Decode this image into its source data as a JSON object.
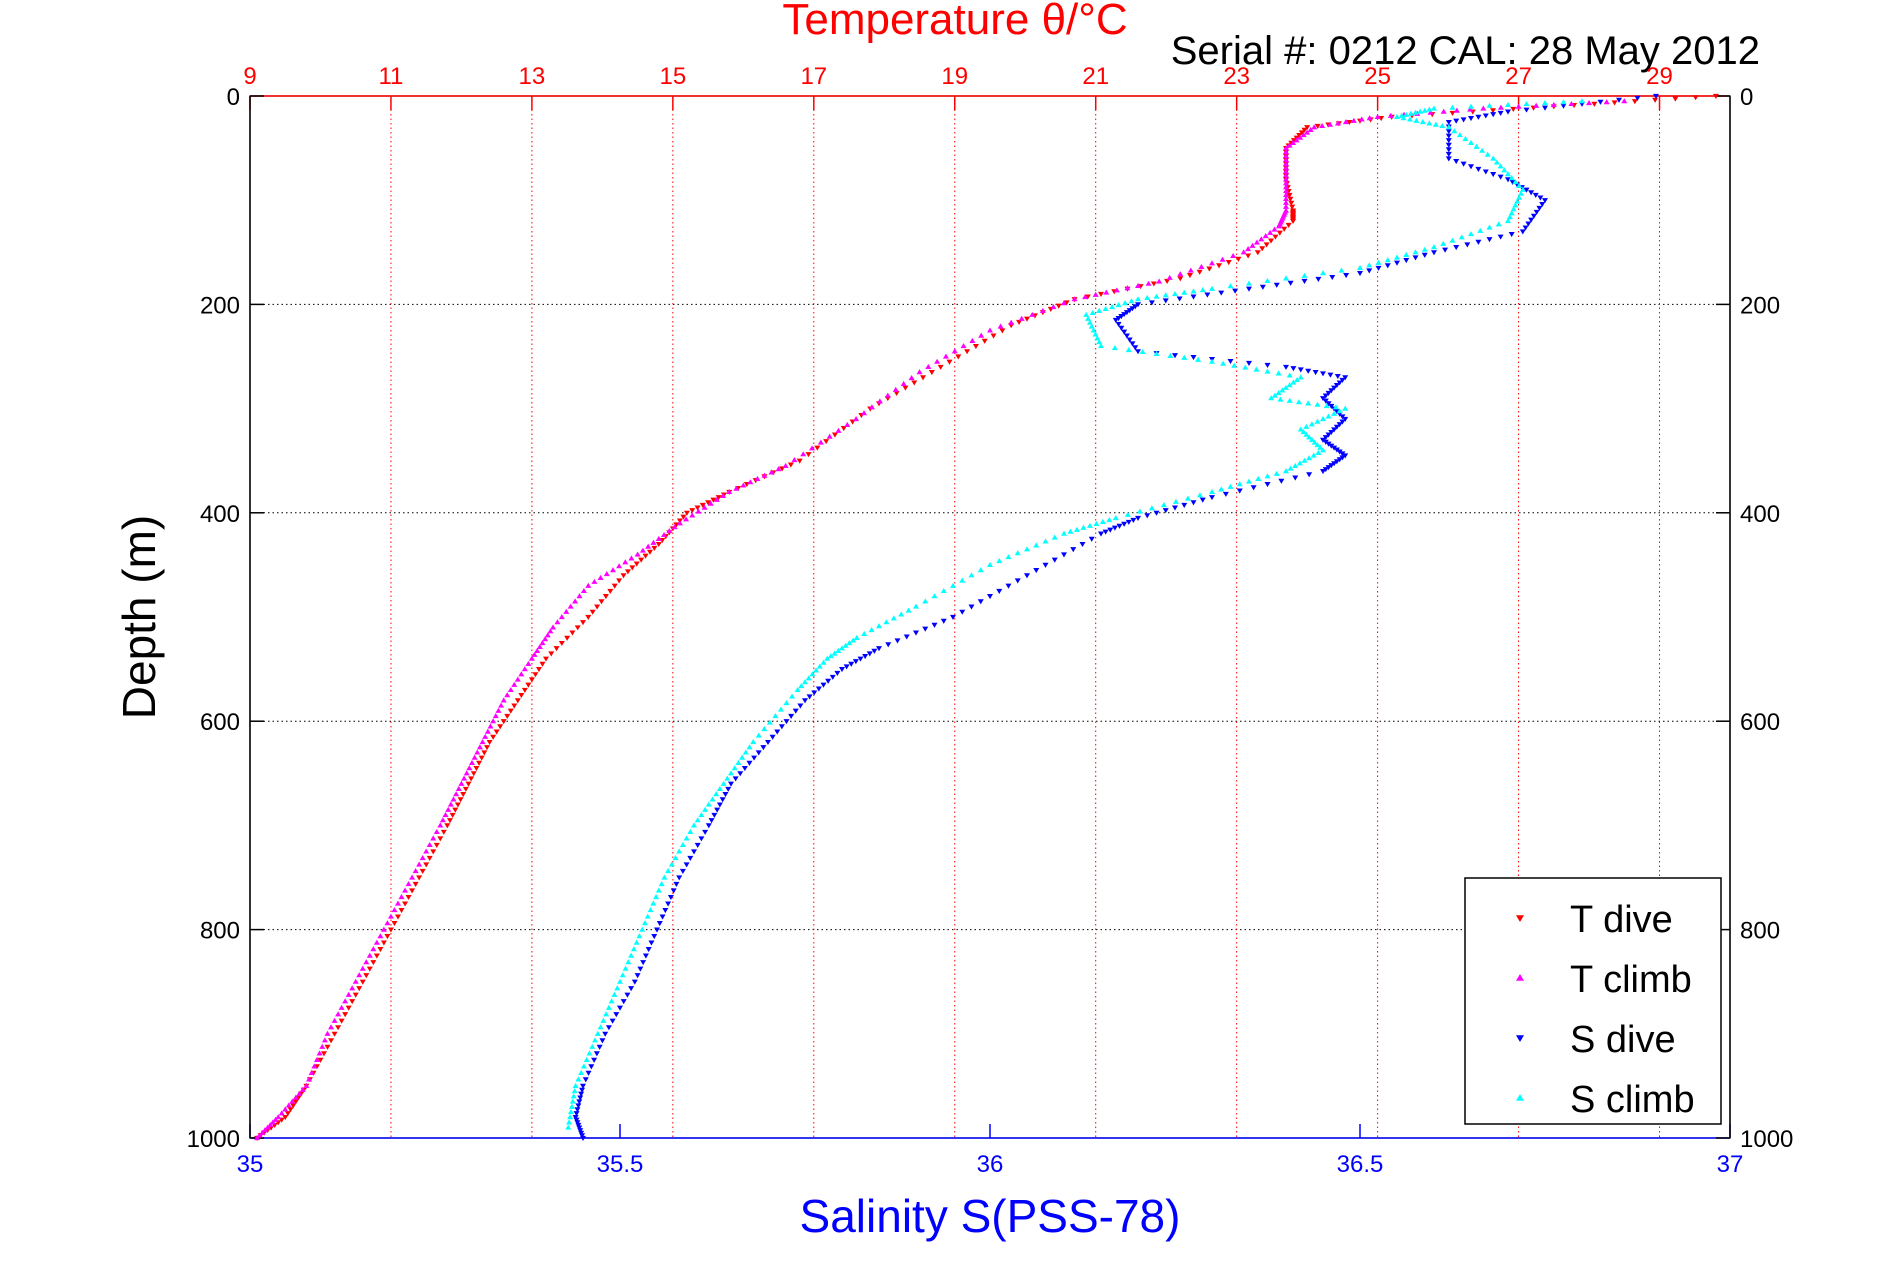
{
  "chart_data": {
    "type": "scatter",
    "title": "Temperature θ/°C",
    "subtitle": "Serial #: 0212  CAL: 28 May 2012",
    "ylabel": "Depth (m)",
    "xlabel": "Salinity S(PSS-78)",
    "top_axis": {
      "label": "Temperature θ/°C",
      "range": [
        9,
        30
      ],
      "ticks": [
        9,
        11,
        13,
        15,
        17,
        19,
        21,
        23,
        25,
        27,
        29
      ],
      "color": "#ff0000"
    },
    "bottom_axis": {
      "label": "Salinity S(PSS-78)",
      "range": [
        35,
        37
      ],
      "ticks": [
        "35",
        "35.5",
        "36",
        "36.5",
        "37"
      ],
      "color": "#0000ff"
    },
    "y_axis": {
      "range": [
        0,
        1000
      ],
      "reversed": true,
      "ticks": [
        0,
        200,
        400,
        600,
        800,
        1000
      ]
    },
    "grid": true,
    "legend_position": "bottom-right",
    "series": [
      {
        "name": "T dive",
        "axis": "top",
        "color": "#ff0000",
        "marker": "triangle-down",
        "points": [
          [
            29.8,
            0
          ],
          [
            27.5,
            10
          ],
          [
            25.2,
            20
          ],
          [
            24.0,
            30
          ],
          [
            23.7,
            50
          ],
          [
            23.7,
            80
          ],
          [
            23.8,
            110
          ],
          [
            23.8,
            120
          ],
          [
            23.3,
            150
          ],
          [
            22.2,
            175
          ],
          [
            20.7,
            195
          ],
          [
            19.8,
            220
          ],
          [
            18.8,
            260
          ],
          [
            17.8,
            300
          ],
          [
            16.8,
            350
          ],
          [
            15.8,
            380
          ],
          [
            15.2,
            400
          ],
          [
            14.8,
            430
          ],
          [
            14.3,
            460
          ],
          [
            13.8,
            500
          ],
          [
            13.2,
            540
          ],
          [
            12.8,
            580
          ],
          [
            12.4,
            620
          ],
          [
            12.1,
            660
          ],
          [
            11.8,
            700
          ],
          [
            11.4,
            750
          ],
          [
            11.0,
            800
          ],
          [
            10.6,
            850
          ],
          [
            10.2,
            900
          ],
          [
            9.8,
            950
          ],
          [
            9.5,
            980
          ],
          [
            9.1,
            1000
          ]
        ]
      },
      {
        "name": "T climb",
        "axis": "top",
        "color": "#ff00ff",
        "marker": "triangle-up",
        "points": [
          [
            28.5,
            5
          ],
          [
            26.5,
            12
          ],
          [
            25.0,
            20
          ],
          [
            24.1,
            30
          ],
          [
            23.7,
            50
          ],
          [
            23.7,
            80
          ],
          [
            23.7,
            110
          ],
          [
            23.6,
            125
          ],
          [
            23.1,
            150
          ],
          [
            21.9,
            178
          ],
          [
            20.7,
            195
          ],
          [
            19.5,
            225
          ],
          [
            18.5,
            265
          ],
          [
            17.6,
            310
          ],
          [
            16.6,
            355
          ],
          [
            15.8,
            380
          ],
          [
            15.1,
            410
          ],
          [
            14.5,
            440
          ],
          [
            13.8,
            470
          ],
          [
            13.3,
            510
          ],
          [
            13.0,
            540
          ],
          [
            12.6,
            580
          ],
          [
            12.3,
            620
          ],
          [
            12.0,
            660
          ],
          [
            11.7,
            700
          ],
          [
            11.3,
            750
          ],
          [
            10.9,
            800
          ],
          [
            10.5,
            850
          ],
          [
            10.1,
            900
          ],
          [
            9.8,
            950
          ],
          [
            9.4,
            980
          ],
          [
            9.1,
            1000
          ]
        ]
      },
      {
        "name": "S dive",
        "axis": "bottom",
        "color": "#0000ff",
        "marker": "triangle-down",
        "points": [
          [
            36.9,
            0
          ],
          [
            36.7,
            15
          ],
          [
            36.62,
            25
          ],
          [
            36.62,
            60
          ],
          [
            36.7,
            80
          ],
          [
            36.75,
            100
          ],
          [
            36.72,
            130
          ],
          [
            36.6,
            150
          ],
          [
            36.5,
            170
          ],
          [
            36.35,
            185
          ],
          [
            36.2,
            200
          ],
          [
            36.17,
            215
          ],
          [
            36.2,
            245
          ],
          [
            36.4,
            260
          ],
          [
            36.48,
            270
          ],
          [
            36.45,
            290
          ],
          [
            36.48,
            310
          ],
          [
            36.45,
            330
          ],
          [
            36.48,
            345
          ],
          [
            36.45,
            360
          ],
          [
            36.3,
            385
          ],
          [
            36.2,
            405
          ],
          [
            36.15,
            420
          ],
          [
            36.05,
            460
          ],
          [
            35.95,
            500
          ],
          [
            35.85,
            530
          ],
          [
            35.8,
            550
          ],
          [
            35.75,
            580
          ],
          [
            35.7,
            620
          ],
          [
            35.65,
            660
          ],
          [
            35.62,
            700
          ],
          [
            35.58,
            750
          ],
          [
            35.55,
            800
          ],
          [
            35.52,
            850
          ],
          [
            35.48,
            900
          ],
          [
            35.45,
            950
          ],
          [
            35.44,
            980
          ],
          [
            35.45,
            1000
          ]
        ]
      },
      {
        "name": "S climb",
        "axis": "bottom",
        "color": "#00ffff",
        "marker": "triangle-up",
        "points": [
          [
            36.8,
            5
          ],
          [
            36.6,
            12
          ],
          [
            36.55,
            20
          ],
          [
            36.62,
            30
          ],
          [
            36.68,
            60
          ],
          [
            36.72,
            90
          ],
          [
            36.7,
            120
          ],
          [
            36.6,
            145
          ],
          [
            36.5,
            165
          ],
          [
            36.3,
            185
          ],
          [
            36.2,
            195
          ],
          [
            36.13,
            210
          ],
          [
            36.15,
            240
          ],
          [
            36.3,
            255
          ],
          [
            36.42,
            270
          ],
          [
            36.38,
            290
          ],
          [
            36.48,
            300
          ],
          [
            36.42,
            320
          ],
          [
            36.45,
            340
          ],
          [
            36.4,
            360
          ],
          [
            36.3,
            380
          ],
          [
            36.17,
            405
          ],
          [
            36.1,
            420
          ],
          [
            36.0,
            450
          ],
          [
            35.9,
            490
          ],
          [
            35.82,
            520
          ],
          [
            35.78,
            540
          ],
          [
            35.74,
            570
          ],
          [
            35.68,
            620
          ],
          [
            35.64,
            660
          ],
          [
            35.6,
            700
          ],
          [
            35.56,
            750
          ],
          [
            35.53,
            800
          ],
          [
            35.5,
            850
          ],
          [
            35.47,
            900
          ],
          [
            35.44,
            950
          ],
          [
            35.43,
            990
          ]
        ]
      }
    ]
  }
}
